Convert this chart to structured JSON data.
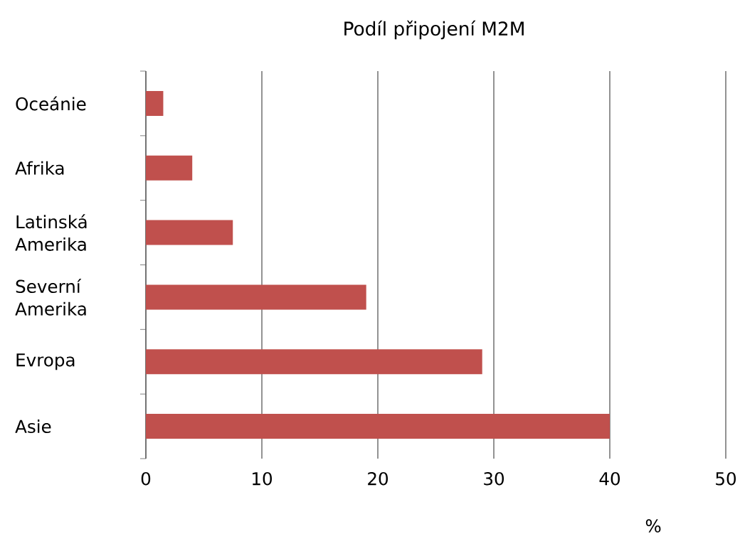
{
  "chart_data": {
    "type": "bar",
    "orientation": "horizontal",
    "title": "Podíl připojení M2M",
    "xlabel": "%",
    "categories": [
      "Oceánie",
      "Afrika",
      "Latinská Amerika",
      "Severní Amerika",
      "Evropa",
      "Asie"
    ],
    "values": [
      1.5,
      4,
      7.5,
      19,
      29,
      40
    ],
    "color": "#c0504d",
    "xlim": [
      0,
      50
    ],
    "xticks": [
      0,
      10,
      20,
      30,
      40,
      50
    ],
    "grid": "x"
  }
}
